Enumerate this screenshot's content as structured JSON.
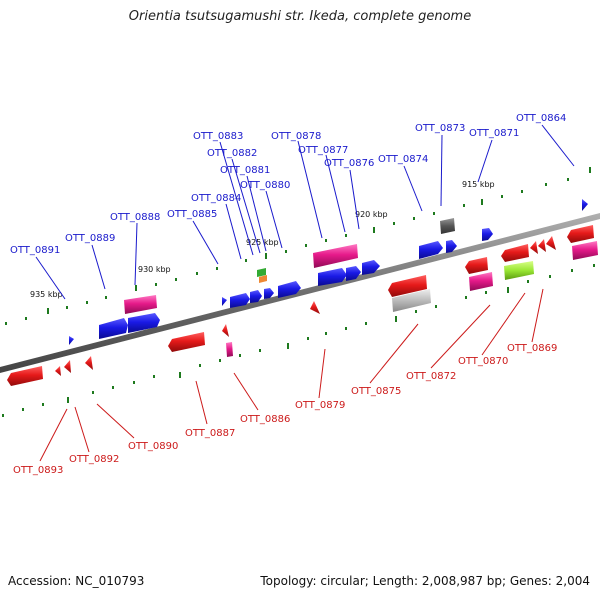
{
  "title": "Orientia tsutsugamushi str. Ikeda, complete genome",
  "footer": {
    "accession": "Accession: NC_010793",
    "stats": "Topology: circular; Length: 2,008,987 bp; Genes: 2,004"
  },
  "colors": {
    "backbone": "#7a7a7a",
    "tick": "#1e7a1e",
    "label_top": "#1a1acc",
    "label_bottom": "#cc1a1a",
    "gene_blue": "#1a1ae6",
    "gene_red": "#e61a1a",
    "gene_pink": "#e61a8a",
    "gene_grey": "#555555",
    "gene_lightgrey": "#bbbbbb",
    "gene_lime": "#99e633",
    "gene_green": "#33aa33",
    "gene_orange": "#ee8833"
  },
  "scale_labels": [
    "915 kbp",
    "920 kbp",
    "925 kbp",
    "930 kbp",
    "935 kbp"
  ],
  "top_labels": [
    "OTT_0864",
    "OTT_0871",
    "OTT_0873",
    "OTT_0874",
    "OTT_0876",
    "OTT_0877",
    "OTT_0878",
    "OTT_0880",
    "OTT_0881",
    "OTT_0882",
    "OTT_0883",
    "OTT_0884",
    "OTT_0885",
    "OTT_0888",
    "OTT_0889",
    "OTT_0891"
  ],
  "bottom_labels": [
    "OTT_0869",
    "OTT_0870",
    "OTT_0872",
    "OTT_0875",
    "OTT_0879",
    "OTT_0886",
    "OTT_0887",
    "OTT_0890",
    "OTT_0892",
    "OTT_0893"
  ]
}
